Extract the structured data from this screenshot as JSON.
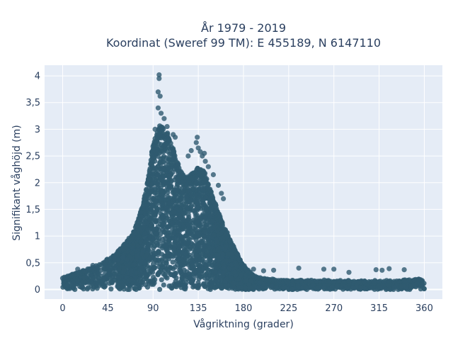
{
  "chart_data": {
    "type": "scatter",
    "title_line1": "År 1979 - 2019",
    "title_line2": "Koordinat (Sweref 99 TM): E 455189, N 6147110",
    "xlabel": "Vågriktning (grader)",
    "ylabel": "Signifikant våghöjd (m)",
    "xlim": [
      -18,
      378
    ],
    "ylim": [
      -0.18,
      4.2
    ],
    "xticks": [
      0,
      45,
      90,
      135,
      180,
      225,
      270,
      315,
      360
    ],
    "xtick_labels": [
      "0",
      "45",
      "90",
      "135",
      "180",
      "225",
      "270",
      "315",
      "360"
    ],
    "yticks": [
      0,
      0.5,
      1,
      1.5,
      2,
      2.5,
      3,
      3.5,
      4
    ],
    "ytick_labels": [
      "0",
      "0,5",
      "1",
      "1,5",
      "2",
      "2,5",
      "3",
      "3,5",
      "4"
    ],
    "grid": true,
    "point_color": "#2f5a70",
    "background_color": "#e5ecf6",
    "envelope": {
      "x": [
        0,
        10,
        20,
        30,
        40,
        50,
        60,
        70,
        75,
        80,
        85,
        88,
        92,
        96,
        100,
        105,
        110,
        115,
        120,
        125,
        130,
        135,
        140,
        145,
        150,
        155,
        160,
        165,
        170,
        175,
        180,
        185,
        190,
        200,
        210,
        225,
        250,
        270,
        300,
        330,
        360
      ],
      "y": [
        0.22,
        0.28,
        0.35,
        0.42,
        0.5,
        0.62,
        0.8,
        1.05,
        1.3,
        1.6,
        2.1,
        2.5,
        2.85,
        3.1,
        3.05,
        2.9,
        2.65,
        2.35,
        2.15,
        2.1,
        2.2,
        2.3,
        2.25,
        2.0,
        1.7,
        1.45,
        1.2,
        1.0,
        0.8,
        0.62,
        0.45,
        0.33,
        0.26,
        0.2,
        0.18,
        0.17,
        0.16,
        0.16,
        0.15,
        0.16,
        0.2
      ]
    },
    "outliers": {
      "x": [
        96,
        96,
        95,
        97,
        95,
        92,
        98,
        101,
        104,
        110,
        112,
        125,
        128,
        133,
        134,
        135,
        137,
        139,
        141,
        142,
        145,
        150,
        155,
        158,
        160,
        190,
        200,
        210,
        235,
        260,
        270,
        285,
        312,
        318,
        325,
        340,
        15,
        30,
        55,
        60
      ],
      "y": [
        4.02,
        3.95,
        3.7,
        3.62,
        3.4,
        3.0,
        3.3,
        3.2,
        3.05,
        2.9,
        2.85,
        2.5,
        2.6,
        2.75,
        2.85,
        2.65,
        2.58,
        2.5,
        2.55,
        2.4,
        2.3,
        2.15,
        1.95,
        1.8,
        1.7,
        0.38,
        0.35,
        0.36,
        0.4,
        0.38,
        0.38,
        0.32,
        0.37,
        0.36,
        0.39,
        0.37,
        0.38,
        0.45,
        0.55,
        0.6
      ]
    }
  }
}
